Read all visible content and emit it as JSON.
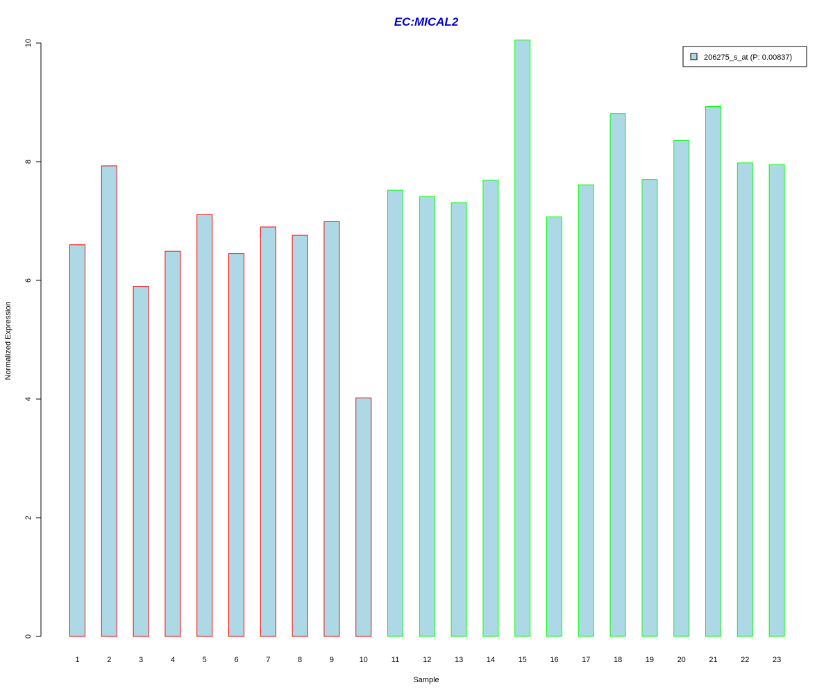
{
  "chart_data": {
    "type": "bar",
    "title": "EC:MICAL2",
    "xlabel": "Sample",
    "ylabel": "Normalized Expression",
    "categories": [
      "1",
      "2",
      "3",
      "4",
      "5",
      "6",
      "7",
      "8",
      "9",
      "10",
      "11",
      "12",
      "13",
      "14",
      "15",
      "16",
      "17",
      "18",
      "19",
      "20",
      "21",
      "22",
      "23"
    ],
    "series": [
      {
        "name": "206275_s_at (P: 0.00837)",
        "values": [
          6.6,
          7.93,
          5.9,
          6.49,
          7.11,
          6.45,
          6.9,
          6.76,
          6.99,
          4.02,
          7.52,
          7.41,
          7.31,
          7.69,
          10.05,
          7.07,
          7.61,
          8.81,
          7.7,
          8.36,
          8.93,
          7.98,
          7.95
        ]
      }
    ],
    "groups": [
      0,
      0,
      0,
      0,
      0,
      0,
      0,
      0,
      0,
      0,
      1,
      1,
      1,
      1,
      1,
      1,
      1,
      1,
      1,
      1,
      1,
      1,
      1
    ],
    "ylim": [
      0,
      10
    ],
    "yticks": [
      "0",
      "2",
      "4",
      "6",
      "8",
      "10"
    ],
    "legend_position": "top-right",
    "grid": false
  },
  "colors": {
    "bar_fill": "#add8e6",
    "group_border": [
      "#ff0000",
      "#00ff00"
    ],
    "title": "#0000cd",
    "axis": "#000000"
  }
}
